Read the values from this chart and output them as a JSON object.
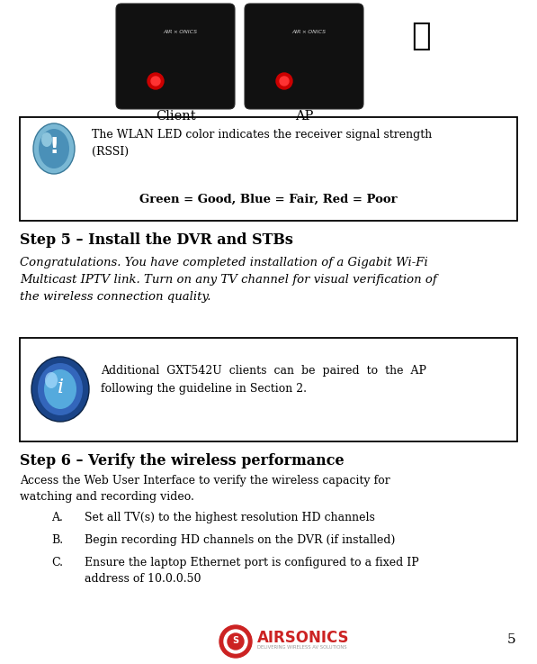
{
  "page_number": "5",
  "bg_color": "#ffffff",
  "box1_text1": "The WLAN LED color indicates the receiver signal strength\n(RSSI)",
  "box1_text2": "Green = Good, Blue = Fair, Red = Poor",
  "step5_heading": "Step 5 – Install the DVR and STBs",
  "step5_body_line1": "Congratulations. You have completed installation of a Gigabit Wi-Fi",
  "step5_body_line2": "Multicast IPTV link. Turn on any TV channel for visual verification of",
  "step5_body_line3": "the wireless connection quality.",
  "box2_text1": "Additional  GXT542U  clients  can  be  paired  to  the  AP",
  "box2_text2": "following the guideline in Section 2.",
  "step6_heading": "Step 6 – Verify the wireless performance",
  "step6_intro1": "Access the Web User Interface to verify the wireless capacity for",
  "step6_intro2": "watching and recording video.",
  "list_labels": [
    "A.",
    "B.",
    "C."
  ],
  "list_items": [
    "Set all TV(s) to the highest resolution HD channels",
    "Begin recording HD channels on the DVR (if installed)",
    "Ensure the laptop Ethernet port is configured to a fixed IP\naddress of 10.0.0.50"
  ],
  "airsonics_text": "AIRSONICS",
  "airsonics_sub": "DELIVERING WIRELESS AV SOLUTIONS",
  "airsonics_color": "#cc2222",
  "page_num": "5",
  "icon1_color_outer": "#7ab8d4",
  "icon1_color_inner": "#4a90b8",
  "icon2_color_outer": "#1a4488",
  "icon2_color_mid": "#3366bb",
  "icon2_color_inner": "#55aadd"
}
